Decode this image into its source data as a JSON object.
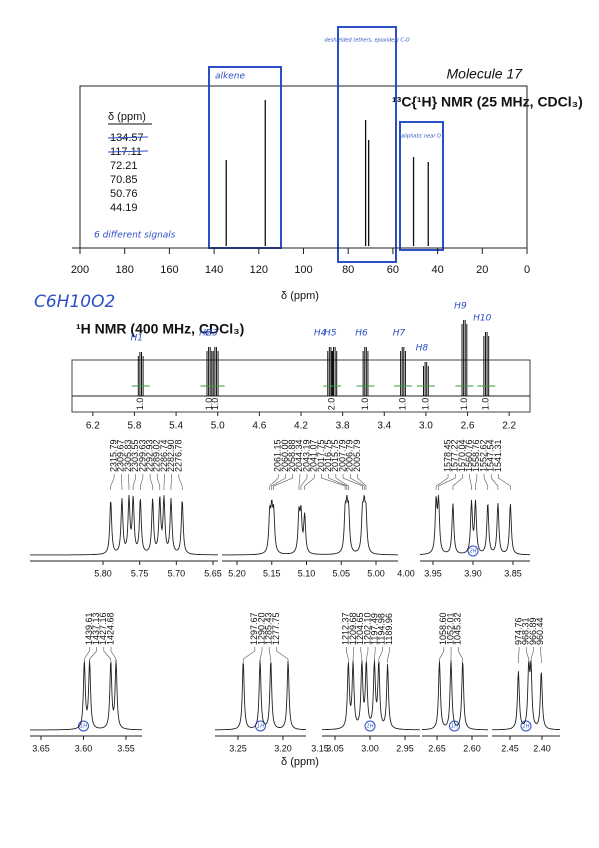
{
  "molecule_label": "Molecule 17",
  "formula_note": "C6H10O2",
  "c13": {
    "title": "¹³C{¹H} NMR (25 MHz, CDCl₃)",
    "table_header": "δ (ppm)",
    "shifts": [
      134.57,
      117.11,
      72.21,
      70.85,
      50.76,
      44.19
    ],
    "xlabel": "δ (ppm)",
    "xlim": [
      200,
      0
    ],
    "xticks": [
      200,
      180,
      160,
      140,
      120,
      100,
      80,
      60,
      40,
      20,
      0
    ],
    "annotations": {
      "alkene": "alkene",
      "deshielded": "deshielded (ethers, epoxides) C-O",
      "aliphatic": "aliphatic near O",
      "signal_count": "6 different signals"
    }
  },
  "h1": {
    "title": "¹H NMR (400 MHz, CDCl₃)",
    "xlim": [
      6.4,
      2.0
    ],
    "xticks": [
      6.2,
      5.8,
      5.4,
      {
        "value": 5.0,
        "label": "5.0"
      },
      4.6,
      4.2,
      3.8,
      3.4,
      {
        "value": 3.0,
        "label": "3.0"
      },
      2.6,
      2.2
    ],
    "signals": [
      {
        "name": "H1",
        "shift": 5.74
      },
      {
        "name": "H2",
        "shift": 5.08
      },
      {
        "name": "H3",
        "shift": 5.02
      },
      {
        "name": "H4",
        "shift": 3.92
      },
      {
        "name": "H5",
        "shift": 3.88
      },
      {
        "name": "H6",
        "shift": 3.58
      },
      {
        "name": "H7",
        "shift": 3.22
      },
      {
        "name": "H8",
        "shift": 3.0
      },
      {
        "name": "H9",
        "shift": 2.63
      },
      {
        "name": "H10",
        "shift": 2.42
      }
    ],
    "integrals": [
      {
        "shift": 5.74,
        "value": 1,
        "label": "1.0"
      },
      {
        "shift": 5.08,
        "value": 1,
        "label": "1.0"
      },
      {
        "shift": 5.02,
        "value": 1,
        "label": "1.0"
      },
      {
        "shift": 3.9,
        "value": 2,
        "label": "2.0"
      },
      {
        "shift": 3.58,
        "value": 1,
        "label": "1.0"
      },
      {
        "shift": 3.22,
        "value": 1,
        "label": "1.0"
      },
      {
        "shift": 3.0,
        "value": 1,
        "label": "1.0"
      },
      {
        "shift": 2.63,
        "value": 1,
        "label": "1.0"
      },
      {
        "shift": 2.42,
        "value": 1,
        "label": "1.0"
      }
    ],
    "frequency_mhz": 400,
    "xlabel": "δ (ppm)",
    "panels": [
      {
        "xticks": [
          {
            "value": 5.8,
            "label": "5.80"
          },
          {
            "value": 5.75,
            "label": "5.75"
          },
          {
            "value": 5.7,
            "label": "5.70"
          },
          {
            "value": 5.65,
            "label": "5.65"
          }
        ],
        "peaks_hz": [
          "2315.79",
          "2309.67",
          "2305.83",
          "2303.55",
          "2299.63",
          "2292.93",
          "2289.02",
          "2286.74",
          "2282.90",
          "2276.78"
        ]
      },
      {
        "xticks": [
          {
            "value": 5.2,
            "label": "5.20"
          },
          {
            "value": 5.15,
            "label": "5.15"
          },
          {
            "value": 5.1,
            "label": "5.10"
          },
          {
            "value": 5.05,
            "label": "5.05"
          },
          {
            "value": 5.0,
            "label": "5.00"
          }
        ],
        "break_label": "4.00",
        "peaks_hz": [
          "2061.15",
          "2060.00",
          "2058.88",
          "2044.34",
          "2043.19",
          "2041.07",
          "2017.75",
          "2016.75",
          "2015.75",
          "2007.79",
          "2006.79",
          "2005.79"
        ]
      },
      {
        "xticks": [
          {
            "value": 3.95,
            "label": "3.95"
          },
          {
            "value": 3.9,
            "label": "3.90"
          },
          {
            "value": 3.85,
            "label": "3.85"
          }
        ],
        "note": "2H",
        "peaks_hz": [
          "1578.45",
          "1577.22",
          "1570.04",
          "1560.76",
          "1558.76",
          "1552.62",
          "1547.54",
          "1541.31"
        ]
      },
      {
        "xticks": [
          {
            "value": 3.65,
            "label": "3.65"
          },
          {
            "value": 3.6,
            "label": "3.60"
          },
          {
            "value": 3.55,
            "label": "3.55"
          }
        ],
        "note": "1H",
        "peaks_hz": [
          "1439.61",
          "1437.13",
          "1427.16",
          "1424.68"
        ]
      },
      {
        "xticks": [
          {
            "value": 3.25,
            "label": "3.25"
          },
          {
            "value": 3.2,
            "label": "3.20"
          }
        ],
        "note": "1H",
        "peaks_hz": [
          "1297.67",
          "1290.20",
          "1285.43",
          "1277.75"
        ]
      },
      {
        "xticks": [
          {
            "value": 3.05,
            "label": "3.05"
          },
          {
            "value": 3.0,
            "label": "3.00"
          },
          {
            "value": 2.95,
            "label": "2.95"
          }
        ],
        "break_label": "3.15",
        "note": "1H",
        "peaks_hz": [
          "1212.37",
          "1209.68",
          "1204.65",
          "1202.10",
          "1197.49",
          "1194.98",
          "1189.96"
        ]
      },
      {
        "xticks": [
          {
            "value": 2.65,
            "label": "2.65"
          },
          {
            "value": 2.6,
            "label": "2.60"
          }
        ],
        "note": "1H",
        "peaks_hz": [
          "1058.60",
          "1052.01",
          "1045.32"
        ]
      },
      {
        "xticks": [
          {
            "value": 2.45,
            "label": "2.45"
          },
          {
            "value": 2.4,
            "label": "2.40"
          }
        ],
        "note": "1H",
        "peaks_hz": [
          "974.76",
          "968.31",
          "966.89",
          "960.44"
        ]
      }
    ]
  }
}
